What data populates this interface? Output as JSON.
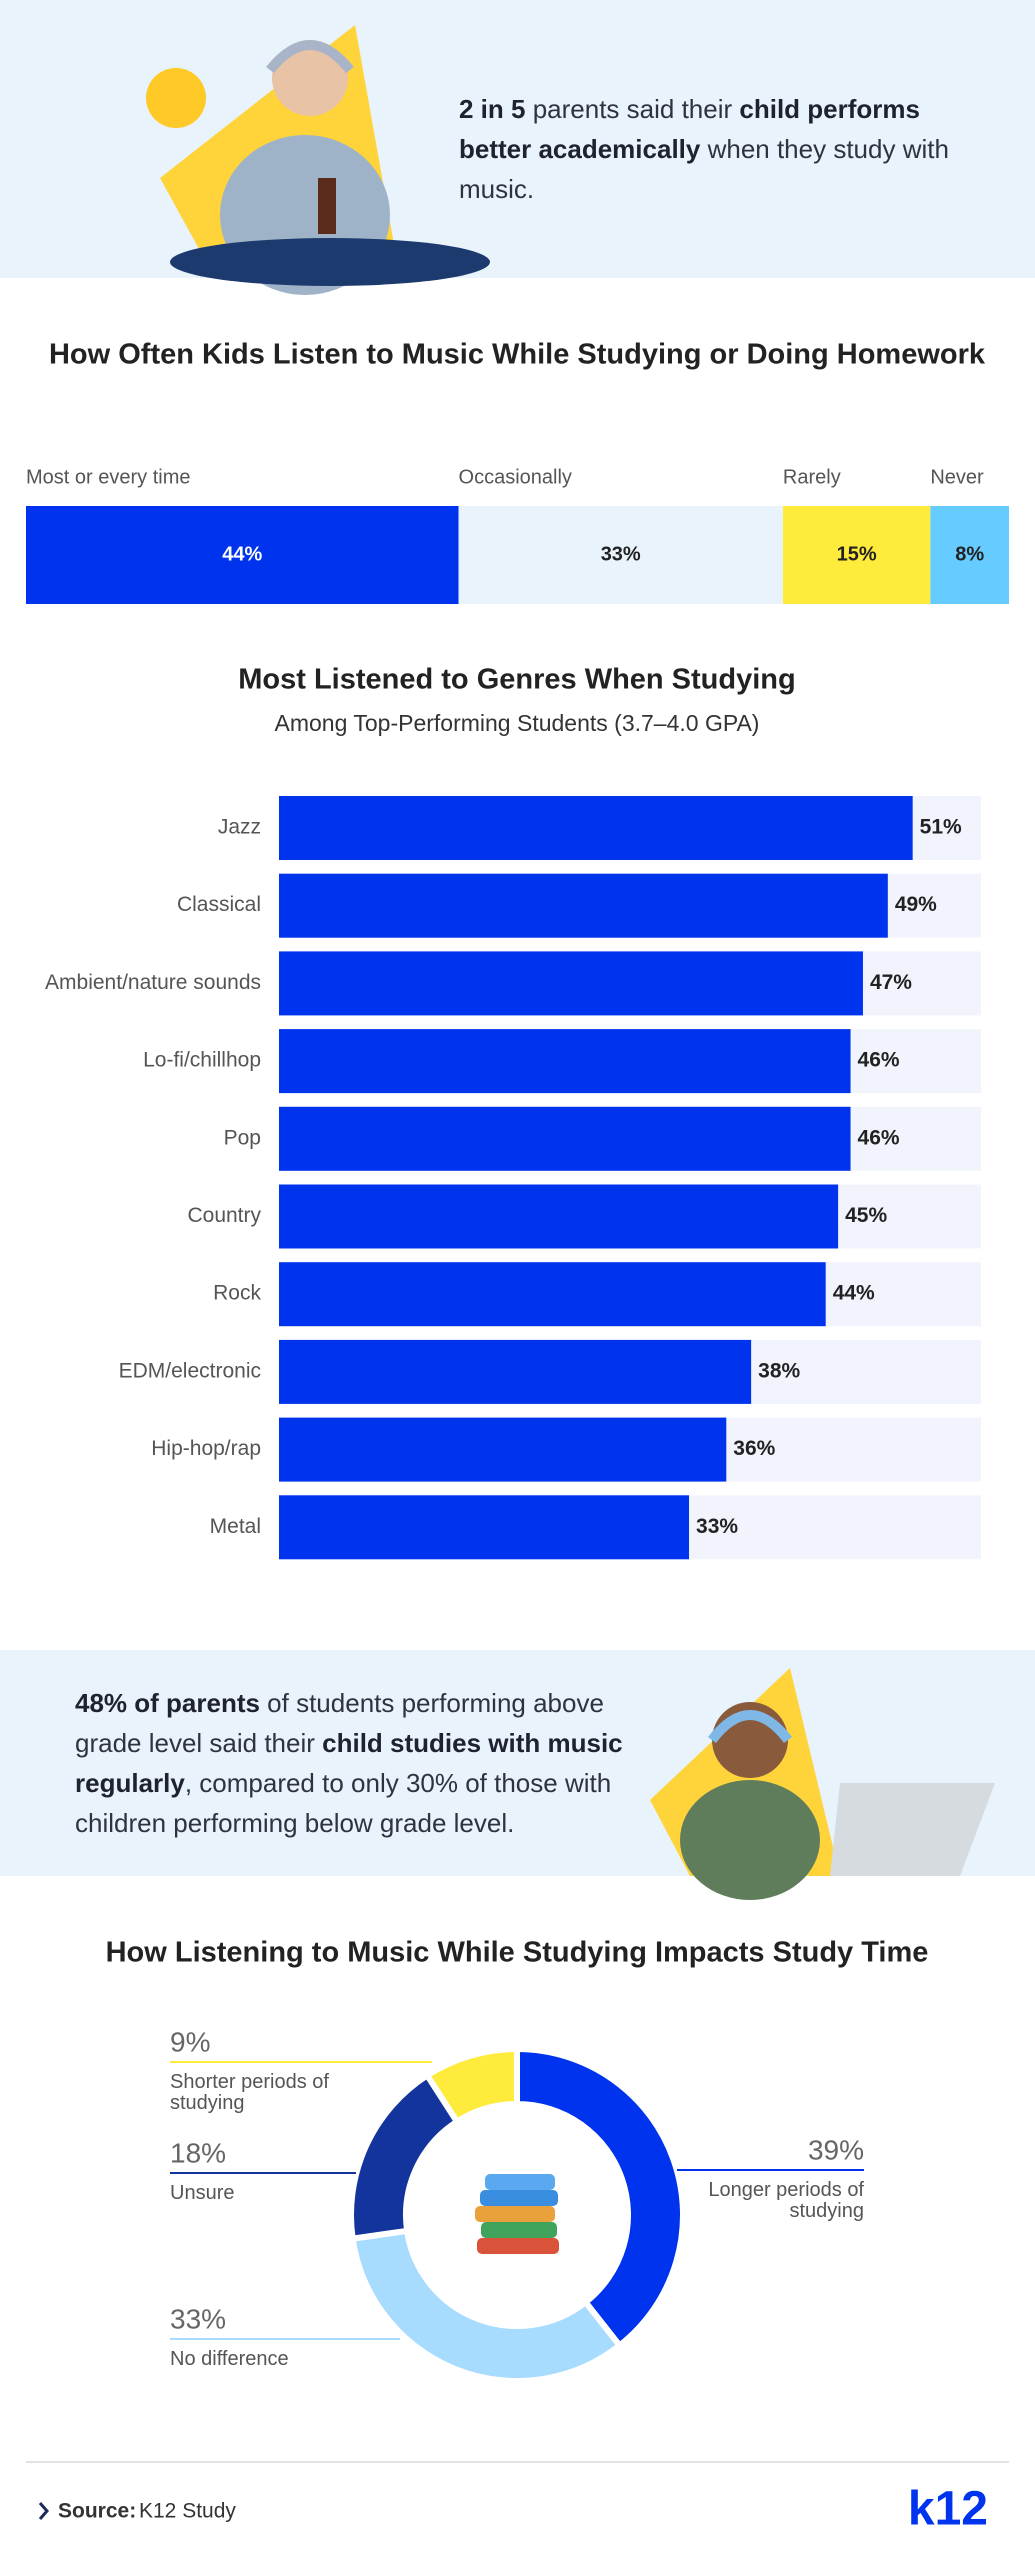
{
  "hero": {
    "segments": [
      {
        "text": "2 in 5",
        "bold": true
      },
      {
        "text": " parents said their ",
        "bold": false
      },
      {
        "text": "child performs better academically",
        "bold": true
      },
      {
        "text": " when they study with music.",
        "bold": false
      }
    ]
  },
  "callout": {
    "segments": [
      {
        "text": "48% of parents",
        "bold": true
      },
      {
        "text": " of students performing above grade level said their ",
        "bold": false
      },
      {
        "text": "child studies with music regularly",
        "bold": true
      },
      {
        "text": ", compared to only 30% of those with children performing below grade level.",
        "bold": false
      }
    ]
  },
  "chart_data": [
    {
      "type": "stacked-bar",
      "title": "How Often Kids Listen to Music While Studying or Doing Homework",
      "series": [
        {
          "name": "Most or every time",
          "color": "#0033ee",
          "values": [
            44
          ],
          "value_labels": [
            "44%"
          ]
        },
        {
          "name": "Occasionally",
          "color": "#e8f3fc",
          "values": [
            33
          ],
          "value_labels": [
            "33%"
          ]
        },
        {
          "name": "Rarely",
          "color": "#ffeb3b",
          "values": [
            15
          ],
          "value_labels": [
            "15%"
          ]
        },
        {
          "name": "Never",
          "color": "#66ccff",
          "values": [
            8
          ],
          "value_labels": [
            "8%"
          ]
        }
      ]
    },
    {
      "type": "hbar",
      "title": "Most Listened to Genres When Studying",
      "subtitle": "Among Top-Performing Students (3.7–4.0 GPA)",
      "categories": [
        "Jazz",
        "Classical",
        "Ambient/nature sounds",
        "Lo-fi/chillhop",
        "Pop",
        "Country",
        "Rock",
        "EDM/electronic",
        "Hip-hop/rap",
        "Metal"
      ],
      "values": [
        51,
        49,
        47,
        46,
        46,
        45,
        44,
        38,
        36,
        33
      ],
      "value_labels": [
        "51%",
        "49%",
        "47%",
        "46%",
        "46%",
        "45%",
        "44%",
        "38%",
        "36%",
        "33%"
      ],
      "color": "#0033ee",
      "xlim": [
        0,
        56.5
      ]
    },
    {
      "type": "donut",
      "title": "How Listening to Music While Studying Impacts Study Time",
      "categories": [
        "Longer periods of studying",
        "No difference",
        "Unsure",
        "Shorter periods of studying"
      ],
      "values": [
        39,
        33,
        18,
        9
      ],
      "value_labels": [
        "39%",
        "33%",
        "18%",
        "9%"
      ],
      "colors": [
        "#0033ee",
        "#a8dcff",
        "#12349c",
        "#ffeb3b"
      ]
    }
  ],
  "footer": {
    "source_label": "Source:",
    "source": "K12 Study",
    "logo": "k12"
  }
}
